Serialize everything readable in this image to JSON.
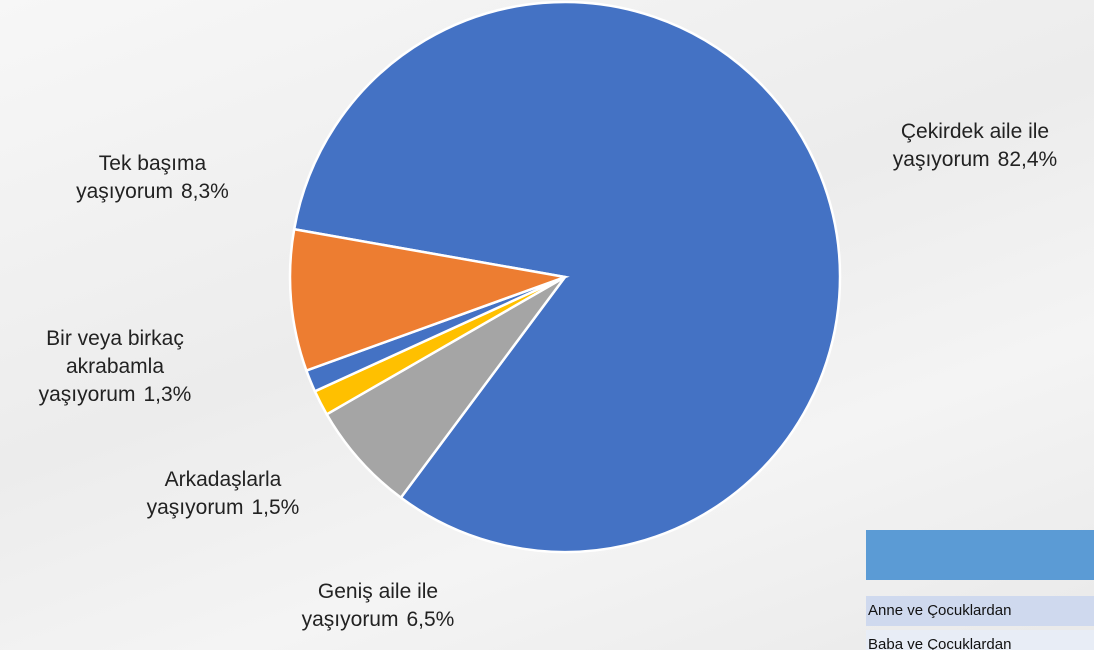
{
  "chart_data": {
    "type": "pie",
    "categories": [
      "Çekirdek aile ile yaşıyorum",
      "Geniş aile ile yaşıyorum",
      "Arkadaşlarla yaşıyorum",
      "Bir veya birkaç akrabamla yaşıyorum",
      "Tek başıma yaşıyorum"
    ],
    "values": [
      82.4,
      6.5,
      1.5,
      1.3,
      8.3
    ],
    "value_labels": [
      "82,4%",
      "6,5%",
      "1,5%",
      "1,3%",
      "8,3%"
    ],
    "colors": [
      "#4472c4",
      "#a5a5a5",
      "#ffc000",
      "#4472c4",
      "#ed7d31"
    ]
  },
  "table": {
    "rows": [
      "Anne ve Çocuklardan",
      "Baba ve Çocuklardan"
    ]
  }
}
